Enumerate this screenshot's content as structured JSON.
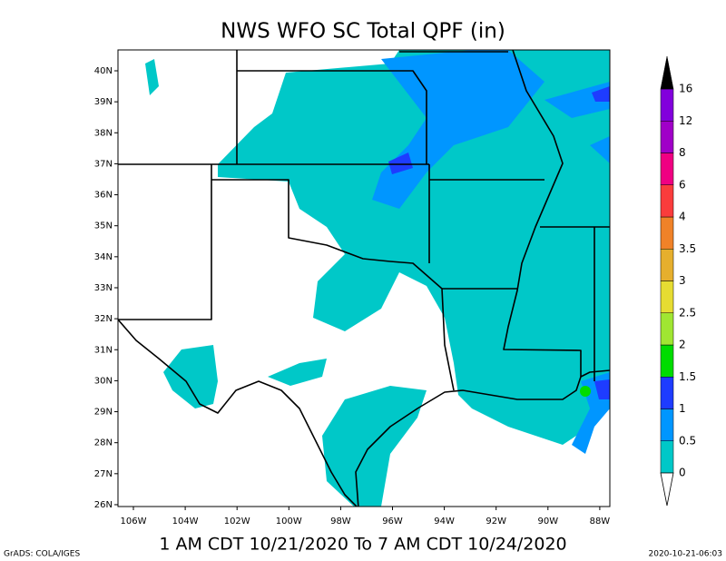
{
  "title": "NWS WFO SC Total QPF (in)",
  "subtitle": "1 AM CDT 10/21/2020 To 7 AM CDT 10/24/2020",
  "credit": "GrADS: COLA/IGES",
  "timestamp": "2020-10-21-06:03",
  "map": {
    "lat_labels": [
      "40N",
      "39N",
      "38N",
      "37N",
      "36N",
      "35N",
      "34N",
      "33N",
      "32N",
      "31N",
      "30N",
      "29N",
      "28N",
      "27N",
      "26N"
    ],
    "lon_labels": [
      "106W",
      "104W",
      "102W",
      "100W",
      "98W",
      "96W",
      "94W",
      "92W",
      "90W",
      "88W"
    ]
  },
  "colorbar": {
    "levels": [
      0,
      0.5,
      1,
      1.5,
      2,
      2.5,
      3,
      3.5,
      4,
      6,
      8,
      12,
      16
    ],
    "colors": [
      "#00c8c8",
      "#0096ff",
      "#1e3cff",
      "#00dc00",
      "#a0e632",
      "#e6dc32",
      "#e6af2d",
      "#f08228",
      "#fa3c3c",
      "#f00082",
      "#a000c8",
      "#8200dc"
    ],
    "above_color": "#000000",
    "below_color": "#ffffff"
  }
}
